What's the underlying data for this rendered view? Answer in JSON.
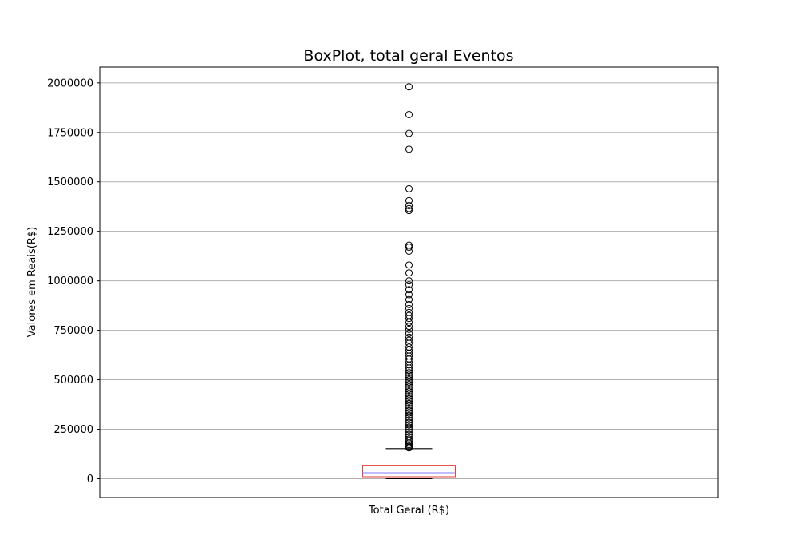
{
  "chart_data": {
    "type": "boxplot",
    "title": "BoxPlot, total geral Eventos",
    "xlabel": "",
    "ylabel": "Valores em Reais(R$)",
    "categories": [
      "Total Geral (R$)"
    ],
    "ylim": [
      -95000,
      2080000
    ],
    "yticks": [
      0,
      250000,
      500000,
      750000,
      1000000,
      1250000,
      1500000,
      1750000,
      2000000
    ],
    "grid": true,
    "legend": "none",
    "boxes": [
      {
        "category": "Total Geral (R$)",
        "whisker_low": 0,
        "q1": 10000,
        "median": 30000,
        "q3": 68000,
        "whisker_high": 152000,
        "outliers": [
          1980000,
          1840000,
          1745000,
          1665000,
          1465000,
          1405000,
          1380000,
          1365000,
          1355000,
          1180000,
          1170000,
          1150000,
          1080000,
          1040000,
          1000000,
          980000,
          955000,
          930000,
          905000,
          880000,
          860000,
          840000,
          825000,
          810000,
          790000,
          770000,
          755000,
          735000,
          715000,
          700000,
          685000,
          665000,
          650000,
          635000,
          620000,
          605000,
          590000,
          575000,
          560000,
          548000,
          536000,
          524000,
          512000,
          500000,
          488000,
          476000,
          464000,
          452000,
          440000,
          428000,
          416000,
          404000,
          392000,
          380000,
          368000,
          356000,
          344000,
          332000,
          320000,
          308000,
          296000,
          284000,
          272000,
          260000,
          248000,
          236000,
          224000,
          212000,
          200000,
          190000,
          180000,
          172000,
          165000,
          160000,
          156000
        ]
      }
    ]
  },
  "colors": {
    "box": "#e8413a",
    "median": "#7b7bff",
    "whisker": "#000000",
    "outlier_stroke": "#000000",
    "grid": "#b0b0b0"
  }
}
